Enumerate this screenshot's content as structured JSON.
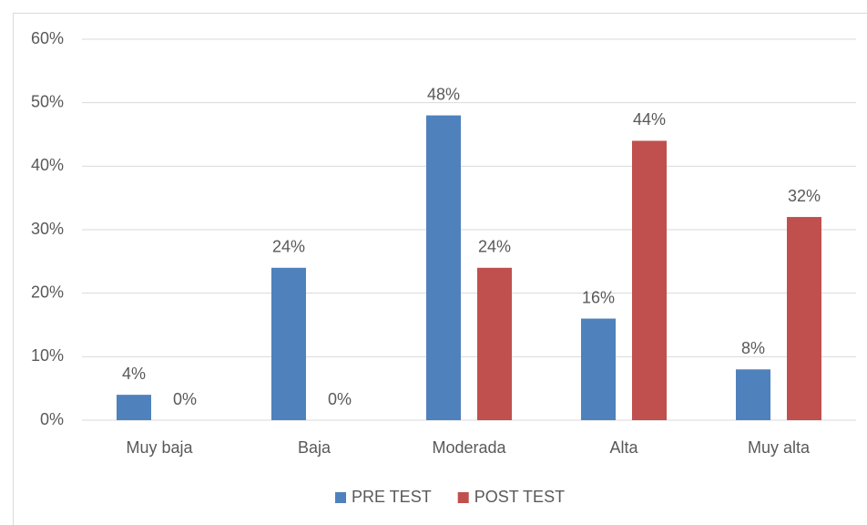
{
  "chart_data": {
    "type": "bar",
    "categories": [
      "Muy baja",
      "Baja",
      "Moderada",
      "Alta",
      "Muy alta"
    ],
    "series": [
      {
        "name": "PRE TEST",
        "color": "#4f81bd",
        "values": [
          4,
          24,
          48,
          16,
          8
        ],
        "value_labels": [
          "4%",
          "24%",
          "48%",
          "16%",
          "8%"
        ]
      },
      {
        "name": "POST TEST",
        "color": "#c0504d",
        "values": [
          0,
          0,
          24,
          44,
          32
        ],
        "value_labels": [
          "0%",
          "0%",
          "24%",
          "44%",
          "32%"
        ]
      }
    ],
    "ylim": [
      0,
      60
    ],
    "yticks": [
      {
        "value": 0,
        "label": "0%"
      },
      {
        "value": 10,
        "label": "10%"
      },
      {
        "value": 20,
        "label": "20%"
      },
      {
        "value": 30,
        "label": "30%"
      },
      {
        "value": 40,
        "label": "40%"
      },
      {
        "value": 50,
        "label": "50%"
      },
      {
        "value": 60,
        "label": "60%"
      }
    ],
    "grid": true,
    "legend": "bottom"
  }
}
